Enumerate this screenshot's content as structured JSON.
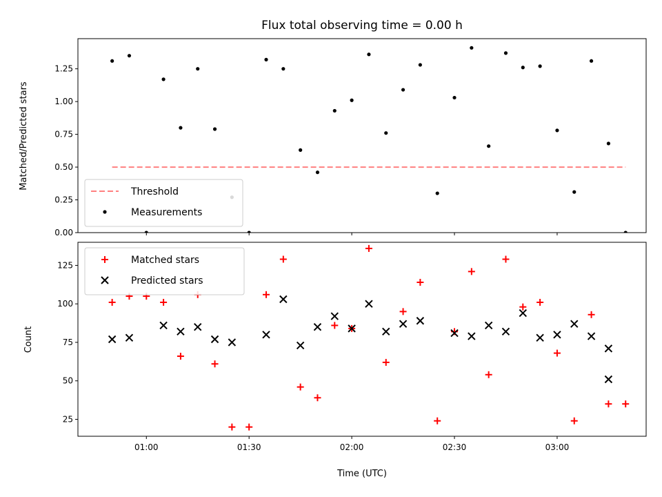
{
  "chart_data": [
    {
      "type": "scatter",
      "title": "Flux total observing time = 0.00 h",
      "xlabel": "",
      "ylabel": "Matched/Predicted stars",
      "xlim": [
        "00:40",
        "03:26"
      ],
      "ylim": [
        0,
        1.48
      ],
      "yticks": [
        0.0,
        0.25,
        0.5,
        0.75,
        1.0,
        1.25
      ],
      "ytick_labels": [
        "0.00",
        "0.25",
        "0.50",
        "0.75",
        "1.00",
        "1.25"
      ],
      "legend_position": "lower-left",
      "series": [
        {
          "name": "Threshold",
          "kind": "dashed-line",
          "color": "#ff7f7f",
          "x": [
            "00:50",
            "03:20"
          ],
          "y": [
            0.5,
            0.5
          ]
        },
        {
          "name": "Measurements",
          "kind": "dot",
          "color": "#000000",
          "x": [
            "00:50",
            "00:55",
            "01:00",
            "01:05",
            "01:10",
            "01:15",
            "01:20",
            "01:25",
            "01:30",
            "01:35",
            "01:40",
            "01:45",
            "01:50",
            "01:55",
            "02:00",
            "02:05",
            "02:10",
            "02:15",
            "02:20",
            "02:25",
            "02:30",
            "02:35",
            "02:40",
            "02:45",
            "02:50",
            "02:55",
            "03:00",
            "03:05",
            "03:10",
            "03:15",
            "03:20"
          ],
          "y": [
            1.31,
            1.35,
            0.0,
            1.17,
            0.8,
            1.25,
            0.79,
            0.27,
            0.0,
            1.32,
            1.25,
            0.63,
            0.46,
            0.93,
            1.01,
            1.36,
            0.76,
            1.09,
            1.28,
            0.3,
            1.03,
            1.41,
            0.66,
            1.37,
            1.26,
            1.27,
            0.78,
            0.31,
            1.31,
            0.68,
            0.0
          ]
        }
      ]
    },
    {
      "type": "scatter",
      "title": "",
      "xlabel": "Time (UTC)",
      "ylabel": "Count",
      "xlim": [
        "00:40",
        "03:26"
      ],
      "ylim": [
        14,
        140
      ],
      "yticks": [
        25,
        50,
        75,
        100,
        125
      ],
      "ytick_labels": [
        "25",
        "50",
        "75",
        "100",
        "125"
      ],
      "xticks": [
        "01:00",
        "01:30",
        "02:00",
        "02:30",
        "03:00"
      ],
      "legend_position": "upper-left",
      "series": [
        {
          "name": "Matched stars",
          "kind": "plus",
          "color": "#ff0000",
          "x": [
            "00:50",
            "00:55",
            "01:00",
            "01:05",
            "01:10",
            "01:15",
            "01:20",
            "01:25",
            "01:30",
            "01:35",
            "01:40",
            "01:45",
            "01:50",
            "01:55",
            "02:00",
            "02:05",
            "02:10",
            "02:15",
            "02:20",
            "02:25",
            "02:30",
            "02:35",
            "02:40",
            "02:45",
            "02:50",
            "02:55",
            "03:00",
            "03:05",
            "03:10",
            "03:15",
            "03:20"
          ],
          "y": [
            101,
            105,
            105,
            101,
            66,
            106,
            61,
            20,
            20,
            106,
            129,
            46,
            39,
            86,
            84,
            136,
            62,
            95,
            114,
            24,
            82,
            121,
            54,
            129,
            98,
            101,
            68,
            24,
            93,
            35,
            35
          ]
        },
        {
          "name": "Predicted stars",
          "kind": "x",
          "color": "#000000",
          "x": [
            "00:50",
            "00:55",
            "01:05",
            "01:10",
            "01:15",
            "01:20",
            "01:25",
            "01:35",
            "01:40",
            "01:45",
            "01:50",
            "01:55",
            "02:00",
            "02:05",
            "02:10",
            "02:15",
            "02:20",
            "02:30",
            "02:35",
            "02:40",
            "02:45",
            "02:50",
            "02:55",
            "03:00",
            "03:05",
            "03:10",
            "03:15"
          ],
          "y": [
            77,
            78,
            86,
            82,
            85,
            77,
            75,
            80,
            103,
            73,
            85,
            92,
            84,
            100,
            82,
            87,
            89,
            81,
            79,
            86,
            82,
            94,
            78,
            80,
            87,
            79,
            71
          ]
        },
        {
          "name": "",
          "kind": "x",
          "color": "#000000",
          "x": [
            "03:15"
          ],
          "y": [
            51
          ]
        }
      ]
    }
  ]
}
